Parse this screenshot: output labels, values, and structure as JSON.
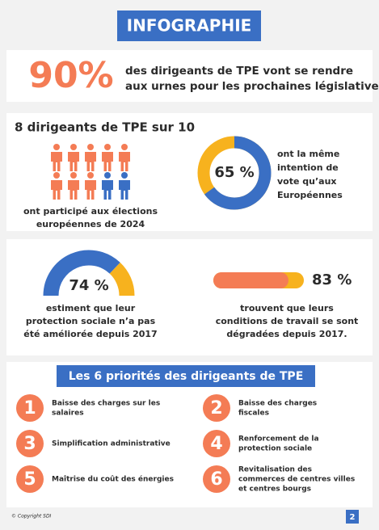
{
  "header": {
    "title": "INFOGRAPHIE"
  },
  "headline": {
    "stat": {
      "value": 90,
      "label": "90%"
    },
    "lines": [
      "des dirigeants de TPE vont se rendre",
      "aux urnes pour les prochaines législatives"
    ]
  },
  "participation": {
    "title": "8 dirigeants de TPE sur 10",
    "count": 8,
    "total": 10,
    "caption": [
      "ont participé aux élections",
      "européennes de 2024"
    ]
  },
  "intention": {
    "value": 65,
    "label": "65 %",
    "lines": [
      "ont la même",
      "intention de",
      "vote qu’aux",
      "Européennes"
    ]
  },
  "protection": {
    "value": 74,
    "label": "74 %",
    "lines": [
      "estiment que leur",
      "protection sociale n’a pas",
      "été améliorée depuis 2017"
    ]
  },
  "conditions": {
    "value": 83,
    "label": "83 %",
    "lines": [
      "trouvent que leurs",
      "conditions de travail se sont",
      "dégradées depuis 2017."
    ]
  },
  "priorities": {
    "title": "Les 6 priorités des dirigeants de TPE",
    "items": [
      {
        "number": "1",
        "lines": [
          "Baisse des charges sur les",
          "salaires"
        ]
      },
      {
        "number": "2",
        "lines": [
          "Baisse des charges",
          "fiscales"
        ]
      },
      {
        "number": "3",
        "lines": [
          "Simplification administrative"
        ]
      },
      {
        "number": "4",
        "lines": [
          "Renforcement de la",
          "protection sociale"
        ]
      },
      {
        "number": "5",
        "lines": [
          "Maîtrise du coût des énergies"
        ]
      },
      {
        "number": "6",
        "lines": [
          "Revitalisation des",
          "commerces de centres villes",
          "et centres bourgs"
        ]
      }
    ]
  },
  "footer": {
    "copyright": "© Copyright SDI",
    "page": "2"
  }
}
